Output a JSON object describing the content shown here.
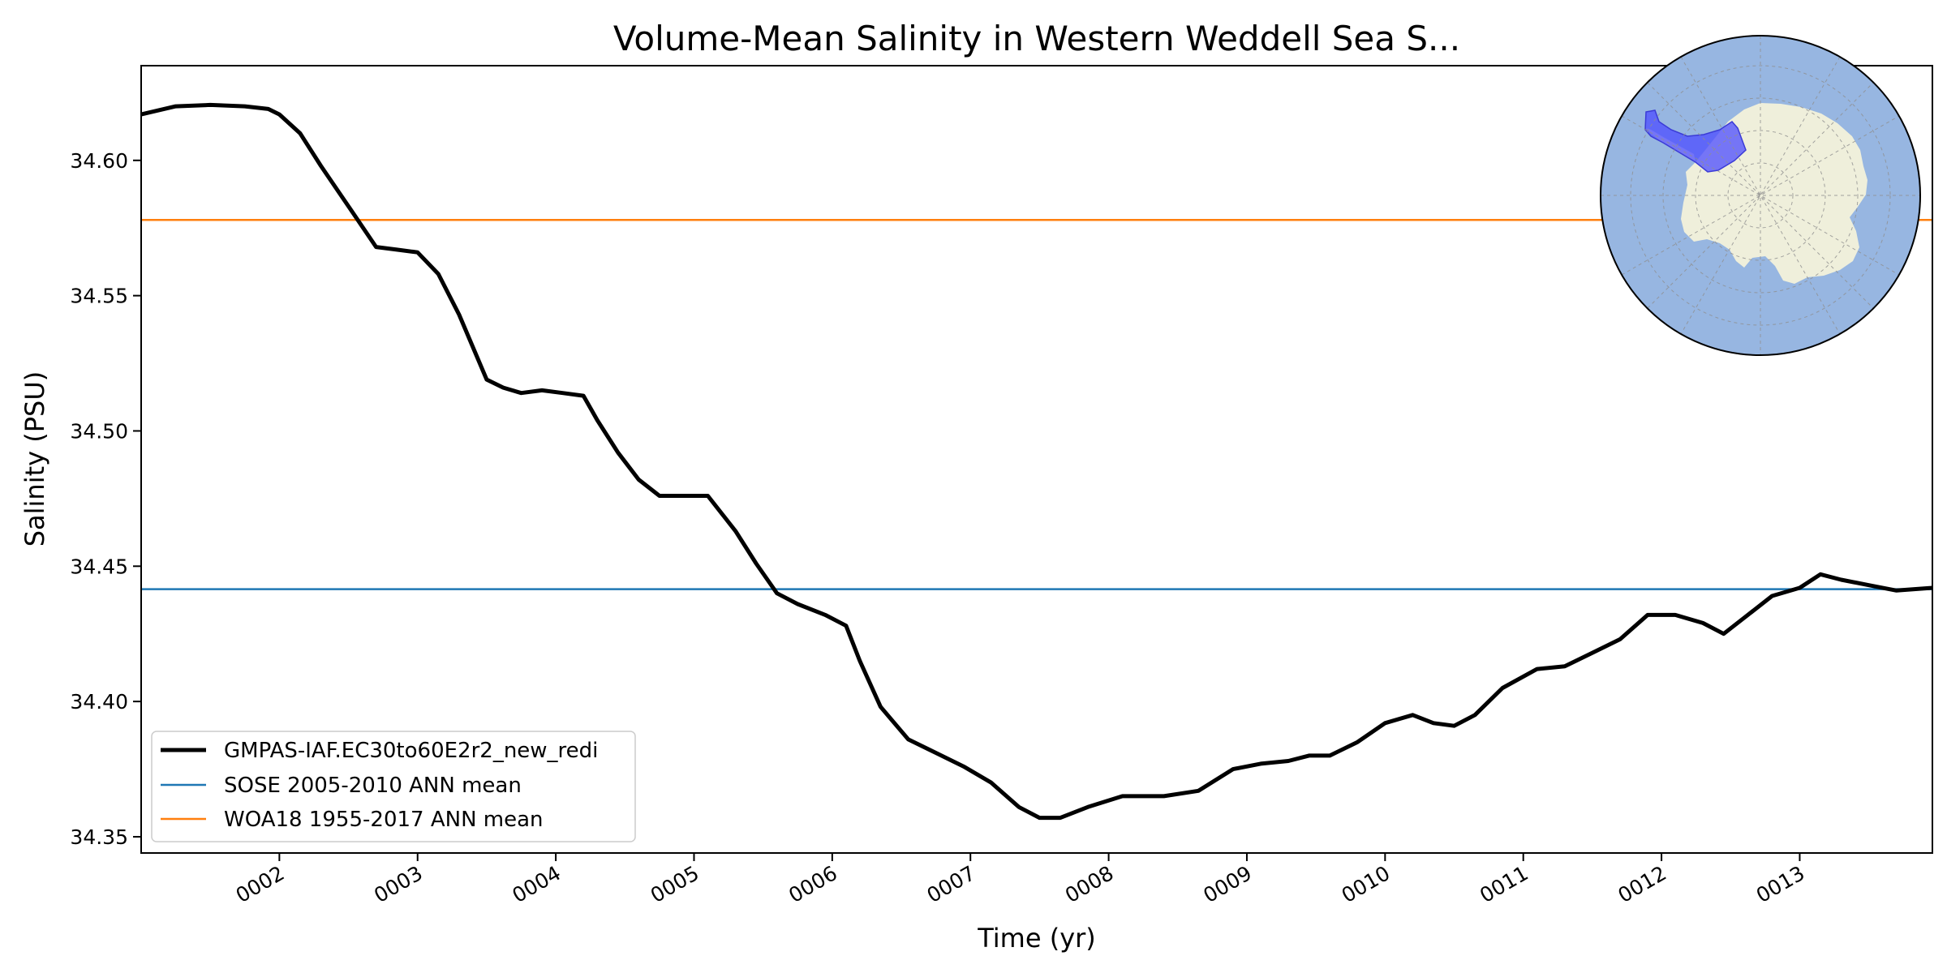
{
  "chart_data": {
    "type": "line",
    "title": "Volume-Mean Salinity in Western Weddell Sea S...",
    "xlabel": "Time (yr)",
    "ylabel": "Salinity (PSU)",
    "xlim": [
      1.0,
      13.96
    ],
    "ylim": [
      34.344,
      34.635
    ],
    "x_ticks": [
      2,
      3,
      4,
      5,
      6,
      7,
      8,
      9,
      10,
      11,
      12,
      13
    ],
    "x_tick_labels": [
      "0002",
      "0003",
      "0004",
      "0005",
      "0006",
      "0007",
      "0008",
      "0009",
      "0010",
      "0011",
      "0012",
      "0013"
    ],
    "y_ticks": [
      34.35,
      34.4,
      34.45,
      34.5,
      34.55,
      34.6
    ],
    "y_tick_labels": [
      "34.35",
      "34.40",
      "34.45",
      "34.50",
      "34.55",
      "34.60"
    ],
    "grid": false,
    "legend_position": "lower-left",
    "series": [
      {
        "name": "GMPAS-IAF.EC30to60E2r2_new_redi",
        "color": "#000000",
        "x": [
          1.0,
          1.25,
          1.5,
          1.75,
          1.92,
          2.0,
          2.15,
          2.3,
          2.5,
          2.7,
          2.85,
          3.0,
          3.15,
          3.3,
          3.5,
          3.62,
          3.75,
          3.9,
          4.05,
          4.2,
          4.3,
          4.45,
          4.6,
          4.75,
          4.95,
          5.1,
          5.3,
          5.45,
          5.6,
          5.75,
          5.95,
          6.1,
          6.2,
          6.35,
          6.55,
          6.75,
          6.95,
          7.15,
          7.35,
          7.5,
          7.65,
          7.85,
          8.1,
          8.4,
          8.65,
          8.9,
          9.1,
          9.3,
          9.45,
          9.6,
          9.8,
          10.0,
          10.2,
          10.35,
          10.5,
          10.65,
          10.85,
          11.1,
          11.3,
          11.5,
          11.7,
          11.9,
          12.1,
          12.3,
          12.45,
          12.6,
          12.8,
          13.0,
          13.15,
          13.3,
          13.5,
          13.7,
          13.96
        ],
        "y": [
          34.617,
          34.62,
          34.6205,
          34.62,
          34.619,
          34.617,
          34.61,
          34.598,
          34.583,
          34.568,
          34.567,
          34.566,
          34.558,
          34.543,
          34.519,
          34.516,
          34.514,
          34.515,
          34.514,
          34.513,
          34.504,
          34.492,
          34.482,
          34.476,
          34.476,
          34.476,
          34.463,
          34.451,
          34.44,
          34.436,
          34.432,
          34.428,
          34.415,
          34.398,
          34.386,
          34.381,
          34.376,
          34.37,
          34.361,
          34.357,
          34.357,
          34.361,
          34.365,
          34.365,
          34.367,
          34.375,
          34.377,
          34.378,
          34.38,
          34.38,
          34.385,
          34.392,
          34.395,
          34.392,
          34.391,
          34.395,
          34.405,
          34.412,
          34.413,
          34.418,
          34.423,
          34.432,
          34.432,
          34.429,
          34.425,
          34.431,
          34.439,
          34.442,
          34.447,
          34.445,
          34.443,
          34.441,
          34.442
        ]
      },
      {
        "name": "SOSE 2005-2010 ANN mean",
        "color": "#1f77b4",
        "constant": 34.4415
      },
      {
        "name": "WOA18 1955-2017 ANN mean",
        "color": "#ff7f0e",
        "constant": 34.578
      }
    ],
    "inset_map": {
      "type": "polar-stereographic map of Antarctica",
      "ocean_color": "#97b6e1",
      "land_color": "#efefdb",
      "region_color": "#4c4cff",
      "region": "Western Weddell Sea"
    }
  }
}
